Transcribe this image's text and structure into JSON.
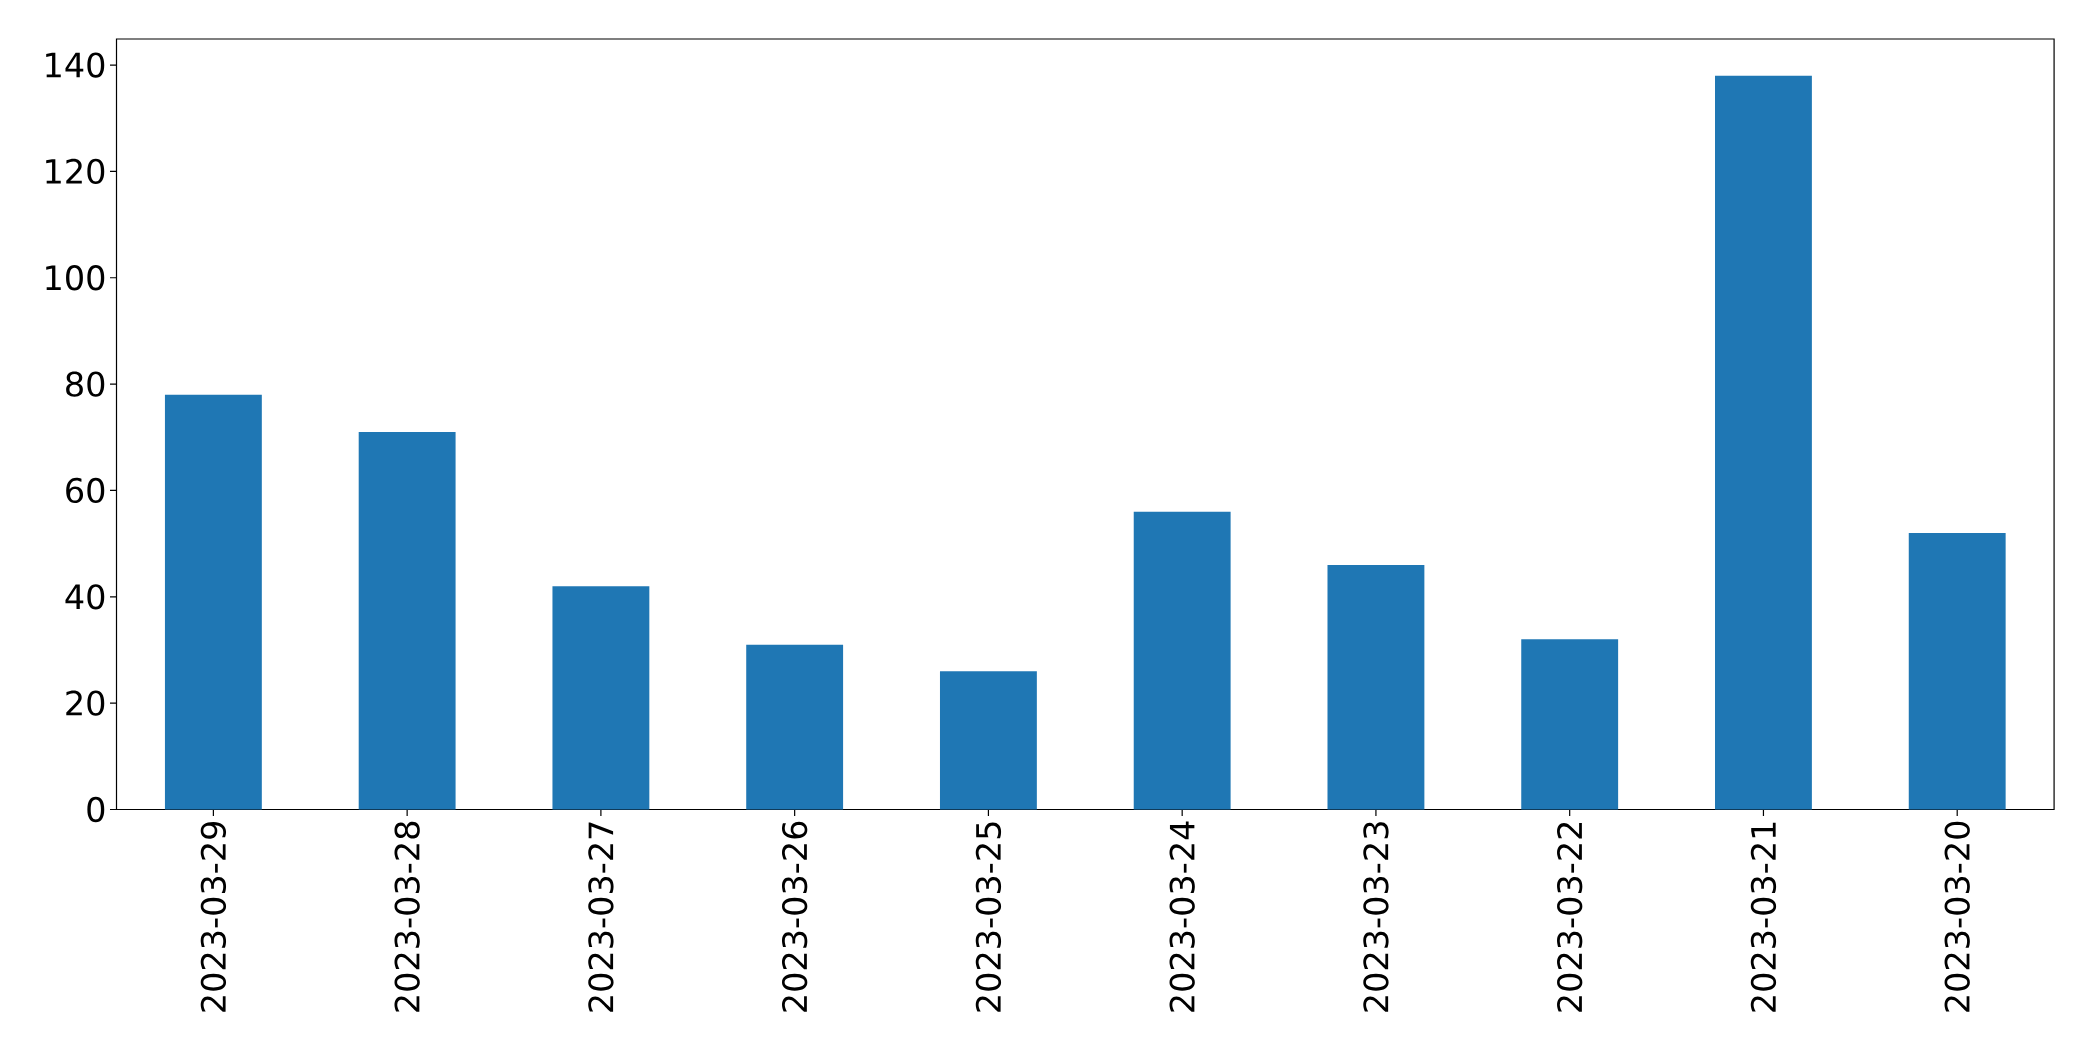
{
  "chart_data": {
    "type": "bar",
    "categories": [
      "2023-03-29",
      "2023-03-28",
      "2023-03-27",
      "2023-03-26",
      "2023-03-25",
      "2023-03-24",
      "2023-03-23",
      "2023-03-22",
      "2023-03-21",
      "2023-03-20"
    ],
    "values": [
      78,
      71,
      42,
      31,
      26,
      56,
      46,
      32,
      138,
      52
    ],
    "color": "#1f77b4",
    "ylim": [
      0,
      144.9
    ],
    "yticks": [
      0,
      20,
      40,
      60,
      80,
      100,
      120,
      140
    ]
  }
}
